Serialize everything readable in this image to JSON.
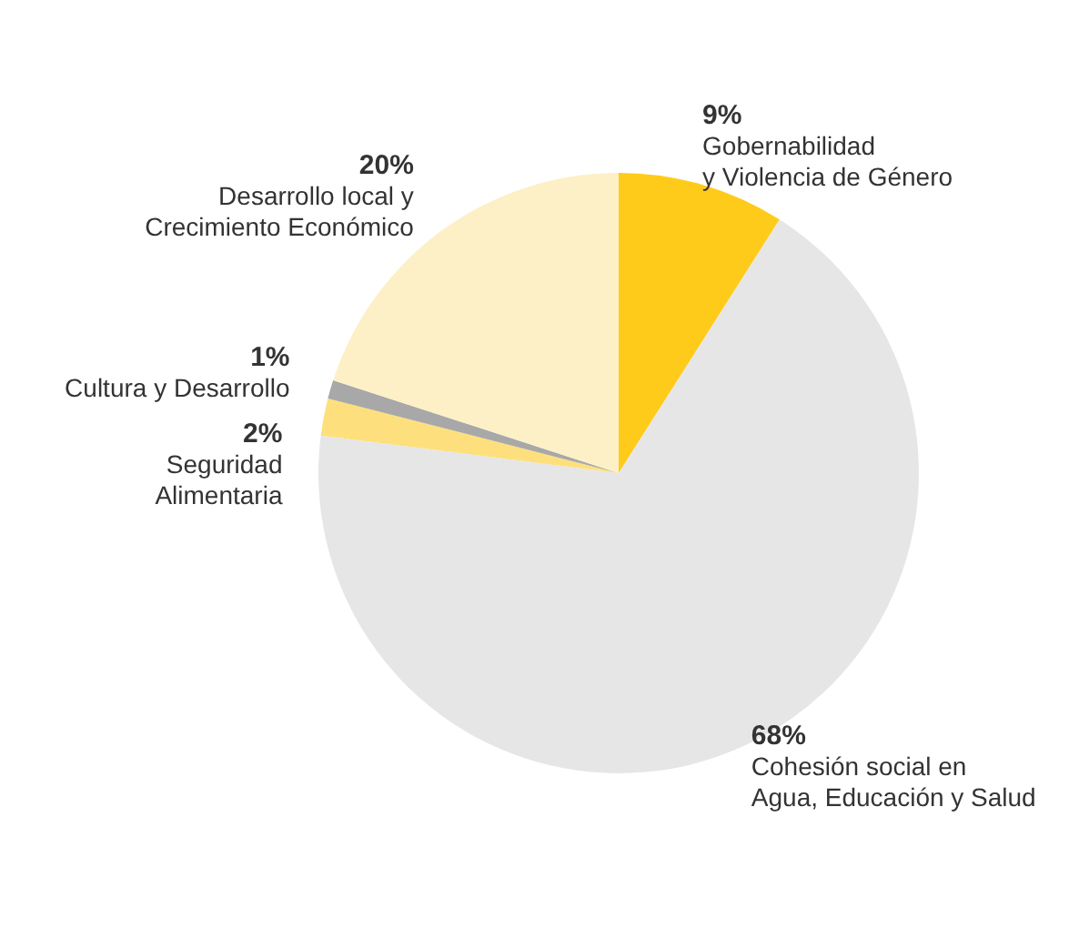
{
  "chart_data": {
    "type": "pie",
    "categories": [
      "Gobernabilidad\ny Violencia de Género",
      "Cohesión social en\nAgua, Educación y Salud",
      "Seguridad\nAlimentaria",
      "Cultura y Desarrollo",
      "Desarrollo local y\nCrecimiento Económico"
    ],
    "values": [
      9,
      68,
      2,
      1,
      20
    ],
    "value_labels": [
      "9%",
      "68%",
      "2%",
      "1%",
      "20%"
    ],
    "colors": [
      "#ffcb1b",
      "#e6e6e6",
      "#fde07d",
      "#a8a8a8",
      "#fdf0c6"
    ]
  }
}
